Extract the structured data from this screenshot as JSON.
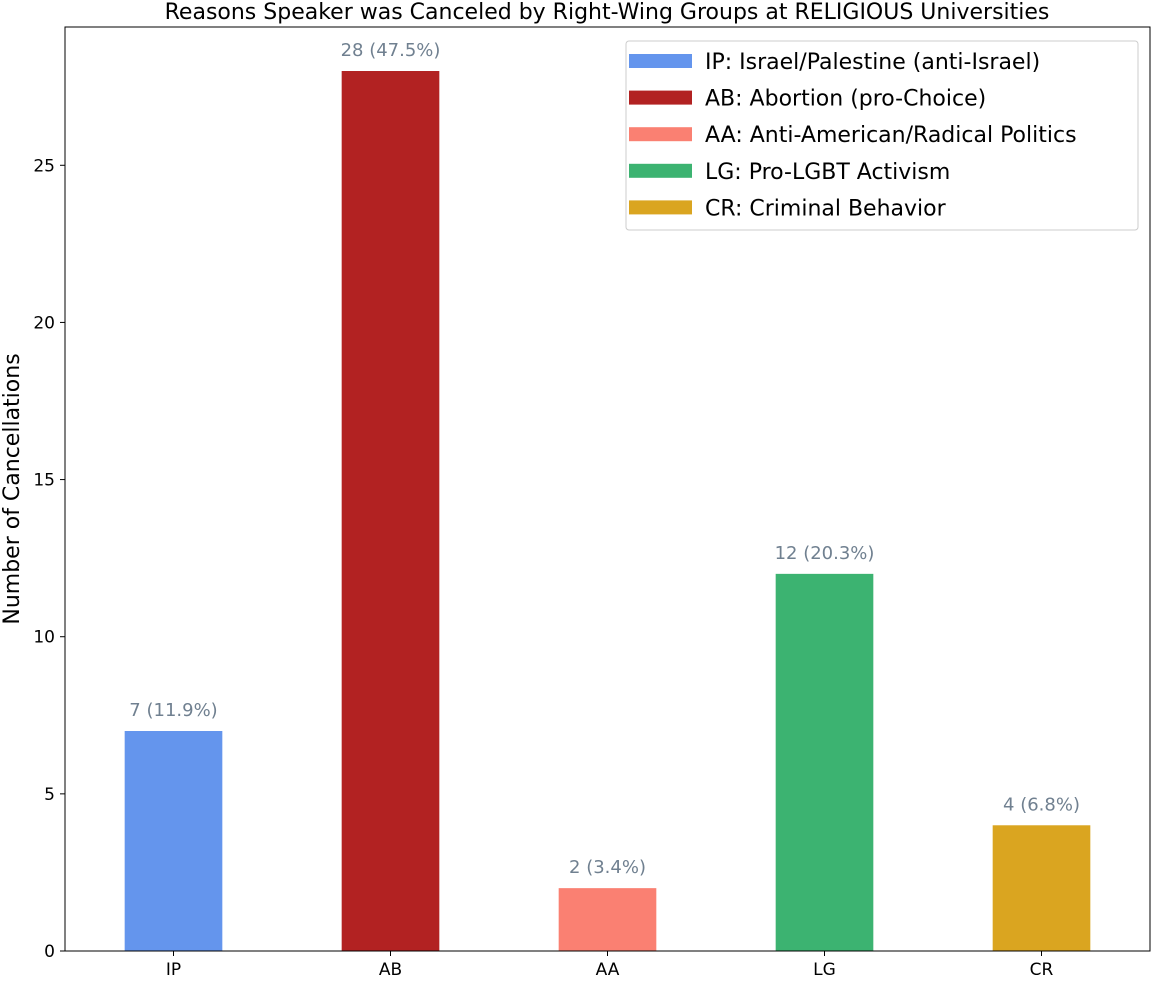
{
  "chart_data": {
    "type": "bar",
    "title": "Reasons Speaker was Canceled by Right-Wing Groups at RELIGIOUS Universities",
    "xlabel": "",
    "ylabel": "Number of Cancellations",
    "categories": [
      "IP",
      "AB",
      "AA",
      "LG",
      "CR"
    ],
    "values": [
      7,
      28,
      2,
      12,
      4
    ],
    "value_labels": [
      "7 (11.9%)",
      "28 (47.5%)",
      "2 (3.4%)",
      "12 (20.3%)",
      "4 (6.8%)"
    ],
    "colors": [
      "#6495ED",
      "#B22222",
      "#FA8072",
      "#3CB371",
      "#DAA520"
    ],
    "label_color": "#708090",
    "ylim": [
      0,
      29.4
    ],
    "yticks": [
      0,
      5,
      10,
      15,
      20,
      25
    ],
    "grid": false,
    "legend": {
      "placement": "top-right",
      "entries": [
        "IP: Israel/Palestine (anti-Israel)",
        "AB: Abortion (pro-Choice)",
        "AA: Anti-American/Radical Politics",
        "LG: Pro-LGBT Activism",
        "CR: Criminal Behavior"
      ]
    }
  }
}
